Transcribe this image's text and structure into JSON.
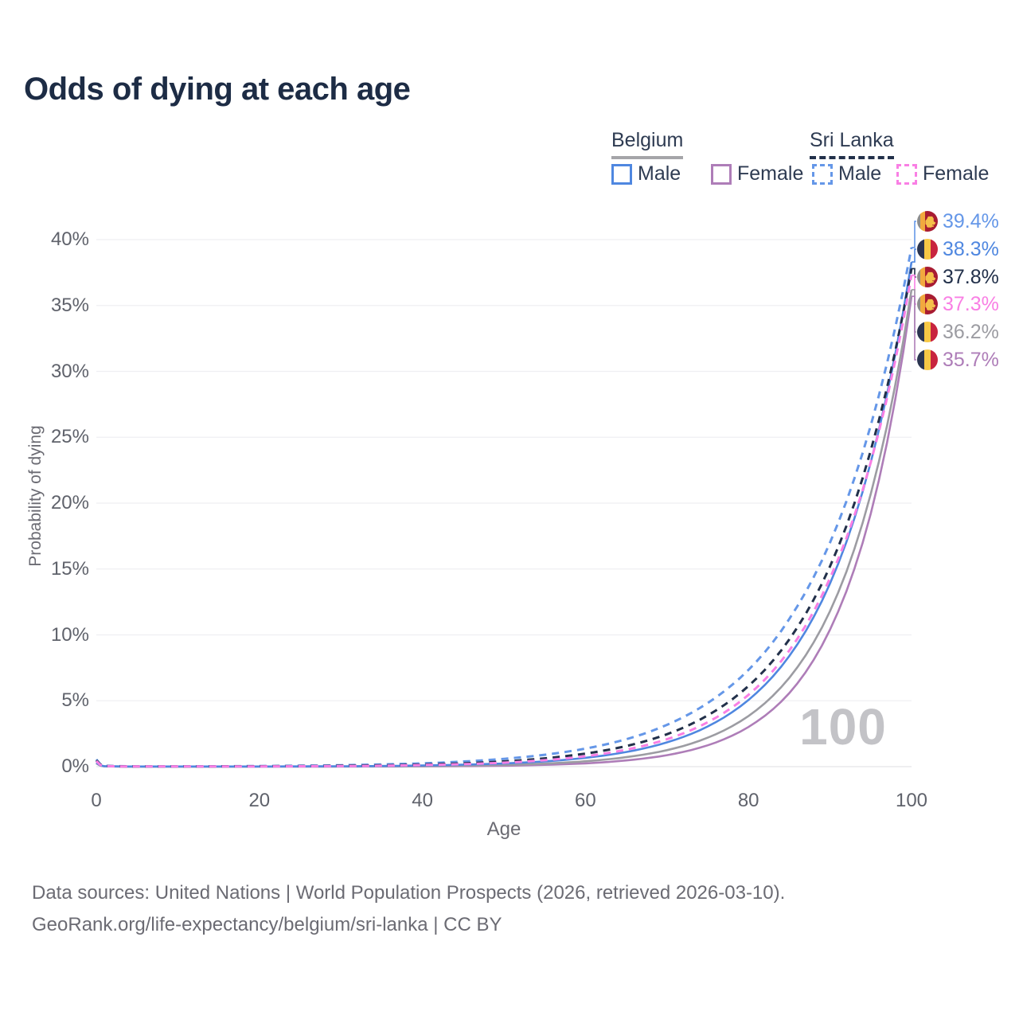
{
  "title": "Odds of dying at each age",
  "legend": {
    "groups": [
      {
        "label": "Belgium",
        "items": [
          {
            "label": "Male"
          },
          {
            "label": "Female"
          }
        ]
      },
      {
        "label": "Sri Lanka",
        "items": [
          {
            "label": "Male"
          },
          {
            "label": "Female"
          }
        ]
      }
    ]
  },
  "chart_data": {
    "type": "line",
    "title": "Odds of dying at each age",
    "xlabel": "Age",
    "ylabel": "Probability of dying",
    "xlim": [
      0,
      100
    ],
    "ylim": [
      0,
      40
    ],
    "x_ticks": [
      "0",
      "20",
      "40",
      "60",
      "80",
      "100"
    ],
    "y_ticks": [
      "0%",
      "5%",
      "10%",
      "15%",
      "20%",
      "25%",
      "30%",
      "35%",
      "40%"
    ],
    "grid": "horizontal",
    "legend_position": "top-right",
    "hover_age_watermark": "100",
    "ages": [
      0,
      1,
      5,
      10,
      15,
      20,
      25,
      30,
      35,
      40,
      45,
      50,
      55,
      60,
      65,
      70,
      75,
      80,
      85,
      90,
      95,
      100
    ],
    "series": [
      {
        "key": "sri-lanka-male",
        "name": "Sri Lanka Male",
        "country": "Sri Lanka",
        "color": "#6597e8",
        "dash": true,
        "end_label": "39.4%",
        "values": [
          0.55,
          0.06,
          0.02,
          0.02,
          0.03,
          0.05,
          0.07,
          0.11,
          0.17,
          0.25,
          0.39,
          0.59,
          0.9,
          1.37,
          2.08,
          3.17,
          4.83,
          7.34,
          11.2,
          17.0,
          25.9,
          39.4
        ]
      },
      {
        "key": "belgium-male",
        "name": "Belgium Male",
        "country": "Belgium",
        "color": "#4f87e0",
        "dash": false,
        "end_label": "38.3%",
        "values": [
          0.3,
          0.03,
          0.01,
          0.01,
          0.01,
          0.01,
          0.02,
          0.03,
          0.05,
          0.09,
          0.15,
          0.24,
          0.4,
          0.67,
          1.11,
          1.84,
          3.05,
          5.06,
          8.39,
          13.9,
          23.1,
          38.3
        ]
      },
      {
        "key": "sri-lanka-all",
        "name": "Sri Lanka",
        "country": "Sri Lanka",
        "color": "#22304a",
        "dash": true,
        "end_label": "37.8%",
        "values": [
          0.48,
          0.05,
          0.01,
          0.01,
          0.02,
          0.03,
          0.04,
          0.07,
          0.1,
          0.16,
          0.25,
          0.4,
          0.63,
          0.99,
          1.56,
          2.46,
          3.89,
          6.12,
          9.65,
          15.2,
          24.0,
          37.8
        ]
      },
      {
        "key": "sri-lanka-female",
        "name": "Sri Lanka Female",
        "country": "Sri Lanka",
        "color": "#f97fe4",
        "dash": true,
        "end_label": "37.3%",
        "values": [
          0.42,
          0.04,
          0.01,
          0.01,
          0.01,
          0.02,
          0.03,
          0.04,
          0.07,
          0.12,
          0.19,
          0.3,
          0.49,
          0.79,
          1.29,
          2.08,
          3.37,
          5.45,
          8.81,
          14.3,
          23.1,
          37.3
        ]
      },
      {
        "key": "belgium-all",
        "name": "Belgium",
        "country": "Belgium",
        "color": "#9c9ca2",
        "dash": false,
        "end_label": "36.2%",
        "values": [
          0.27,
          0.025,
          0.005,
          0.005,
          0.005,
          0.01,
          0.01,
          0.01,
          0.02,
          0.04,
          0.08,
          0.13,
          0.23,
          0.41,
          0.72,
          1.25,
          2.2,
          3.84,
          6.74,
          11.8,
          20.7,
          36.2
        ]
      },
      {
        "key": "belgium-female",
        "name": "Belgium Female",
        "country": "Belgium",
        "color": "#ae7db8",
        "dash": false,
        "end_label": "35.7%",
        "values": [
          0.25,
          0.02,
          0.003,
          0.003,
          0.003,
          0.005,
          0.005,
          0.01,
          0.01,
          0.02,
          0.04,
          0.07,
          0.14,
          0.25,
          0.47,
          0.87,
          1.62,
          3.01,
          5.58,
          10.4,
          19.2,
          35.7
        ]
      }
    ]
  },
  "colors": {
    "title": "#1d2c45",
    "legend_text": "#2e3b52",
    "belgium_underline": "#a5a5a9",
    "sri_lanka_underline": "#22304a",
    "belgium_male": "#4f87e0",
    "belgium_female": "#ae7db8",
    "belgium_all": "#9c9ca2",
    "sri_lanka_male": "#6597e8",
    "sri_lanka_female": "#f97fe4",
    "sri_lanka_all": "#22304a",
    "gridline": "#efeff2",
    "zero_line": "#e3e3e7",
    "axis_text": "#5f626b",
    "watermark": "#c3c3c7",
    "flag_belgium": [
      "#2b3550",
      "#f7c845",
      "#c8243e"
    ],
    "flag_sri_lanka": [
      "#8d8d8d",
      "#f2a93e",
      "#a81c32",
      "#f5c04a"
    ]
  },
  "footer": {
    "line1": "Data sources: United Nations | World Population Prospects (2026, retrieved 2026-03-10).",
    "line2": "GeoRank.org/life-expectancy/belgium/sri-lanka | CC BY"
  }
}
